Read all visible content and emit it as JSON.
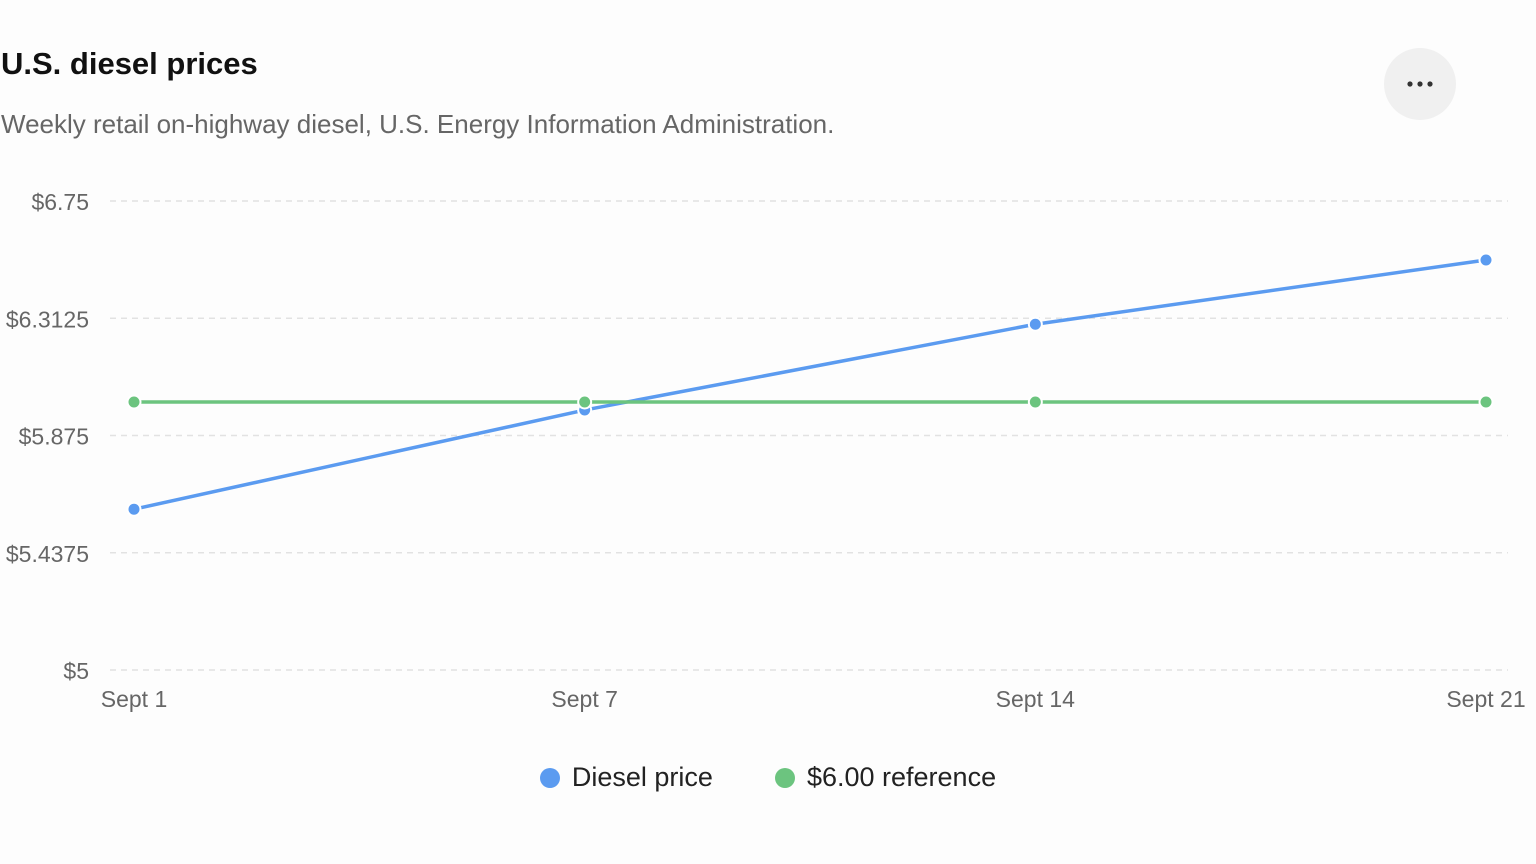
{
  "header": {
    "title": "U.S. diesel prices",
    "subtitle": "Weekly retail on-highway diesel, U.S. Energy Information Administration.",
    "more_icon": "more-horizontal-icon"
  },
  "colors": {
    "diesel": "#5b9bf0",
    "reference": "#6cc47f",
    "grid": "#e2e2e2",
    "axis_text": "#666666"
  },
  "chart_data": {
    "type": "line",
    "title": "U.S. diesel prices",
    "subtitle": "Weekly retail on-highway diesel, U.S. Energy Information Administration.",
    "categories": [
      "Sept 1",
      "Sept 7",
      "Sept 14",
      "Sept 21"
    ],
    "y_ticks": [
      "$5",
      "$5.4375",
      "$5.875",
      "$6.3125",
      "$6.75"
    ],
    "ylim": [
      5,
      6.75
    ],
    "grid": true,
    "legend_position": "bottom-center",
    "series": [
      {
        "name": "Diesel price",
        "values": [
          5.6,
          5.97,
          6.29,
          6.53
        ]
      },
      {
        "name": "$6.00 reference",
        "values": [
          6.0,
          6.0,
          6.0,
          6.0
        ]
      }
    ]
  }
}
